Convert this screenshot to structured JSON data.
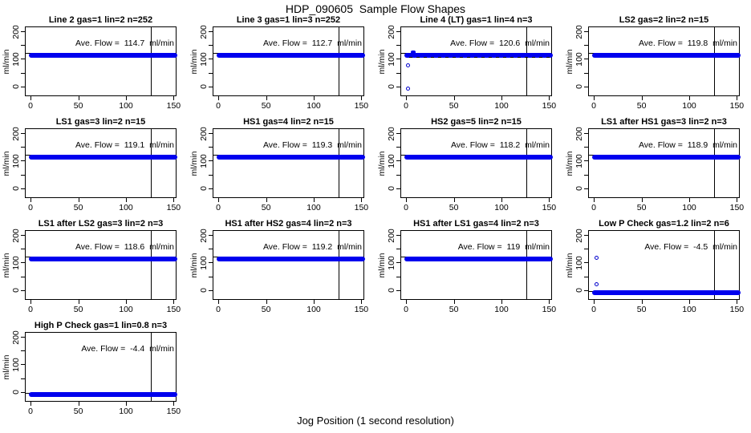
{
  "title": "HDP_090605  Sample Flow Shapes",
  "x_axis_label": "Jog Position (1 second resolution)",
  "colors": {
    "point_blue": "#0000ee",
    "outline_blue": "#0000cc",
    "line_black": "#000000",
    "background": "#ffffff"
  },
  "axes": {
    "y_unit_label": "ml/min",
    "x_ticks": [
      0,
      50,
      100,
      150
    ],
    "y_ticks": [
      0,
      50,
      100,
      150,
      200
    ],
    "y_labeled_ticks": [
      0,
      100,
      200
    ],
    "xlim": [
      -6,
      153
    ],
    "ylim": [
      -35,
      220
    ]
  },
  "layout": {
    "columns": 4,
    "rows": 4,
    "vline_x": 125,
    "band_x": [
      0,
      152
    ],
    "band_y_high": [
      108,
      125
    ],
    "band_y_low": [
      -14,
      3
    ],
    "refline_y_high": 125,
    "refline_y_low": 0
  },
  "chart_data": [
    {
      "type": "scatter",
      "title": "Line 2 gas=1 lin=2 n=252",
      "ave_flow": 114.7,
      "annotation": "Ave. Flow =  114.7  ml/min",
      "band": "high",
      "outliers": [],
      "noisy": false
    },
    {
      "type": "scatter",
      "title": "Line 3 gas=1 lin=3 n=252",
      "ave_flow": 112.7,
      "annotation": "Ave. Flow =  112.7  ml/min",
      "band": "high",
      "outliers": [],
      "noisy": false
    },
    {
      "type": "scatter",
      "title": "Line 4 (LT) gas=1 lin=4 n=3",
      "ave_flow": 120.6,
      "annotation": "Ave. Flow =  120.6  ml/min",
      "band": "high",
      "outliers": [
        {
          "x": 1,
          "y": 80
        },
        {
          "x": 1,
          "y": -5
        }
      ],
      "noisy": true
    },
    {
      "type": "scatter",
      "title": "LS2 gas=2 lin=2 n=15",
      "ave_flow": 119.8,
      "annotation": "Ave. Flow =  119.8  ml/min",
      "band": "high",
      "outliers": [],
      "noisy": false
    },
    {
      "type": "scatter",
      "title": "LS1 gas=3 lin=2 n=15",
      "ave_flow": 119.1,
      "annotation": "Ave. Flow =  119.1  ml/min",
      "band": "high",
      "outliers": [],
      "noisy": false
    },
    {
      "type": "scatter",
      "title": "HS1 gas=4 lin=2 n=15",
      "ave_flow": 119.3,
      "annotation": "Ave. Flow =  119.3  ml/min",
      "band": "high",
      "outliers": [],
      "noisy": false
    },
    {
      "type": "scatter",
      "title": "HS2 gas=5 lin=2 n=15",
      "ave_flow": 118.2,
      "annotation": "Ave. Flow =  118.2  ml/min",
      "band": "high",
      "outliers": [],
      "noisy": false
    },
    {
      "type": "scatter",
      "title": "LS1 after HS1 gas=3 lin=2 n=3",
      "ave_flow": 118.9,
      "annotation": "Ave. Flow =  118.9  ml/min",
      "band": "high",
      "outliers": [],
      "noisy": false
    },
    {
      "type": "scatter",
      "title": "LS1 after LS2 gas=3 lin=2 n=3",
      "ave_flow": 118.6,
      "annotation": "Ave. Flow =  118.6  ml/min",
      "band": "high",
      "outliers": [],
      "noisy": false
    },
    {
      "type": "scatter",
      "title": "HS1 after HS2 gas=4 lin=2 n=3",
      "ave_flow": 119.2,
      "annotation": "Ave. Flow =  119.2  ml/min",
      "band": "high",
      "outliers": [],
      "noisy": false
    },
    {
      "type": "scatter",
      "title": "HS1 after LS1 gas=4 lin=2 n=3",
      "ave_flow": 119,
      "annotation": "Ave. Flow =  119  ml/min",
      "band": "high",
      "outliers": [],
      "noisy": false
    },
    {
      "type": "scatter",
      "title": "Low P Check gas=1.2 lin=2 n=6",
      "ave_flow": -4.5,
      "annotation": "Ave. Flow =  -4.5  ml/min",
      "band": "low",
      "outliers": [
        {
          "x": 2,
          "y": 122
        },
        {
          "x": 2,
          "y": 25
        }
      ],
      "noisy": false
    },
    {
      "type": "scatter",
      "title": "High P Check gas=1 lin=0.8 n=3",
      "ave_flow": -4.4,
      "annotation": "Ave. Flow =  -4.4  ml/min",
      "band": "low",
      "outliers": [],
      "noisy": false
    }
  ]
}
